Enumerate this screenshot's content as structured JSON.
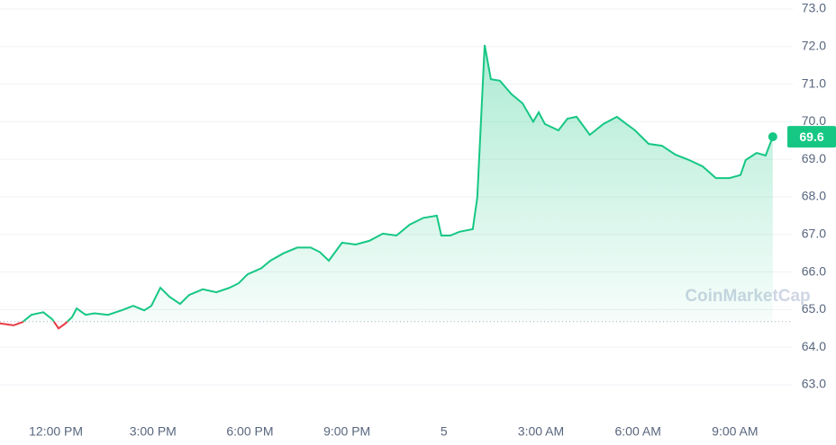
{
  "chart_data": {
    "type": "line",
    "x": [
      10.27,
      10.69,
      10.97,
      11.24,
      11.61,
      11.89,
      12.08,
      12.28,
      12.5,
      12.64,
      12.92,
      13.19,
      13.61,
      14.03,
      14.39,
      14.73,
      14.95,
      15.23,
      15.51,
      15.84,
      16.12,
      16.54,
      16.96,
      17.37,
      17.65,
      17.93,
      18.35,
      18.63,
      19.04,
      19.46,
      19.88,
      20.16,
      20.44,
      20.85,
      21.27,
      21.69,
      22.11,
      22.53,
      22.94,
      23.36,
      23.78,
      23.92,
      24.2,
      24.48,
      24.89,
      25.03,
      25.26,
      25.45,
      25.73,
      26.09,
      26.43,
      26.76,
      26.93,
      27.12,
      27.54,
      27.82,
      28.1,
      28.51,
      28.93,
      29.35,
      29.55,
      29.91,
      30.33,
      30.74,
      31.16,
      31.58,
      32.0,
      32.41,
      32.83,
      33.17,
      33.33,
      33.67,
      33.95,
      34.17
    ],
    "values": [
      64.63,
      64.58,
      64.67,
      64.86,
      64.93,
      64.74,
      64.5,
      64.62,
      64.8,
      65.03,
      64.86,
      64.9,
      64.86,
      64.98,
      65.1,
      64.98,
      65.1,
      65.58,
      65.34,
      65.15,
      65.39,
      65.54,
      65.46,
      65.58,
      65.7,
      65.94,
      66.1,
      66.3,
      66.5,
      66.65,
      66.65,
      66.53,
      66.3,
      66.78,
      66.73,
      66.83,
      67.02,
      66.97,
      67.26,
      67.44,
      67.5,
      66.97,
      66.97,
      67.07,
      67.14,
      67.98,
      72.04,
      71.13,
      71.09,
      70.73,
      70.49,
      70.0,
      70.25,
      69.94,
      69.77,
      70.08,
      70.13,
      69.65,
      69.94,
      70.13,
      70.0,
      69.77,
      69.41,
      69.36,
      69.12,
      68.98,
      68.81,
      68.5,
      68.5,
      68.58,
      68.98,
      69.17,
      69.1,
      69.6
    ],
    "color": "#16c784",
    "down_color": "#ea3943",
    "baseline": 64.68,
    "xlim": [
      10.27,
      34.23
    ],
    "xticks": [
      {
        "value": 12,
        "label": "12:00 PM"
      },
      {
        "value": 15,
        "label": "3:00 PM"
      },
      {
        "value": 18,
        "label": "6:00 PM"
      },
      {
        "value": 21,
        "label": "9:00 PM"
      },
      {
        "value": 24,
        "label": "5"
      },
      {
        "value": 27,
        "label": "3:00 AM"
      },
      {
        "value": 30,
        "label": "6:00 AM"
      },
      {
        "value": 33,
        "label": "9:00 AM"
      }
    ],
    "ylim": [
      62.2,
      73.2
    ],
    "yticks": [
      {
        "value": 63,
        "label": "63.0"
      },
      {
        "value": 64,
        "label": "64.0"
      },
      {
        "value": 65,
        "label": "65.0"
      },
      {
        "value": 66,
        "label": "66.0"
      },
      {
        "value": 67,
        "label": "67.0"
      },
      {
        "value": 68,
        "label": "68.0"
      },
      {
        "value": 69,
        "label": "69.0"
      },
      {
        "value": 70,
        "label": "70.0"
      },
      {
        "value": 71,
        "label": "71.0"
      },
      {
        "value": 72,
        "label": "72.0"
      },
      {
        "value": 73,
        "label": "73.0"
      }
    ],
    "grid": true,
    "watermark": "CoinMarketCap"
  }
}
